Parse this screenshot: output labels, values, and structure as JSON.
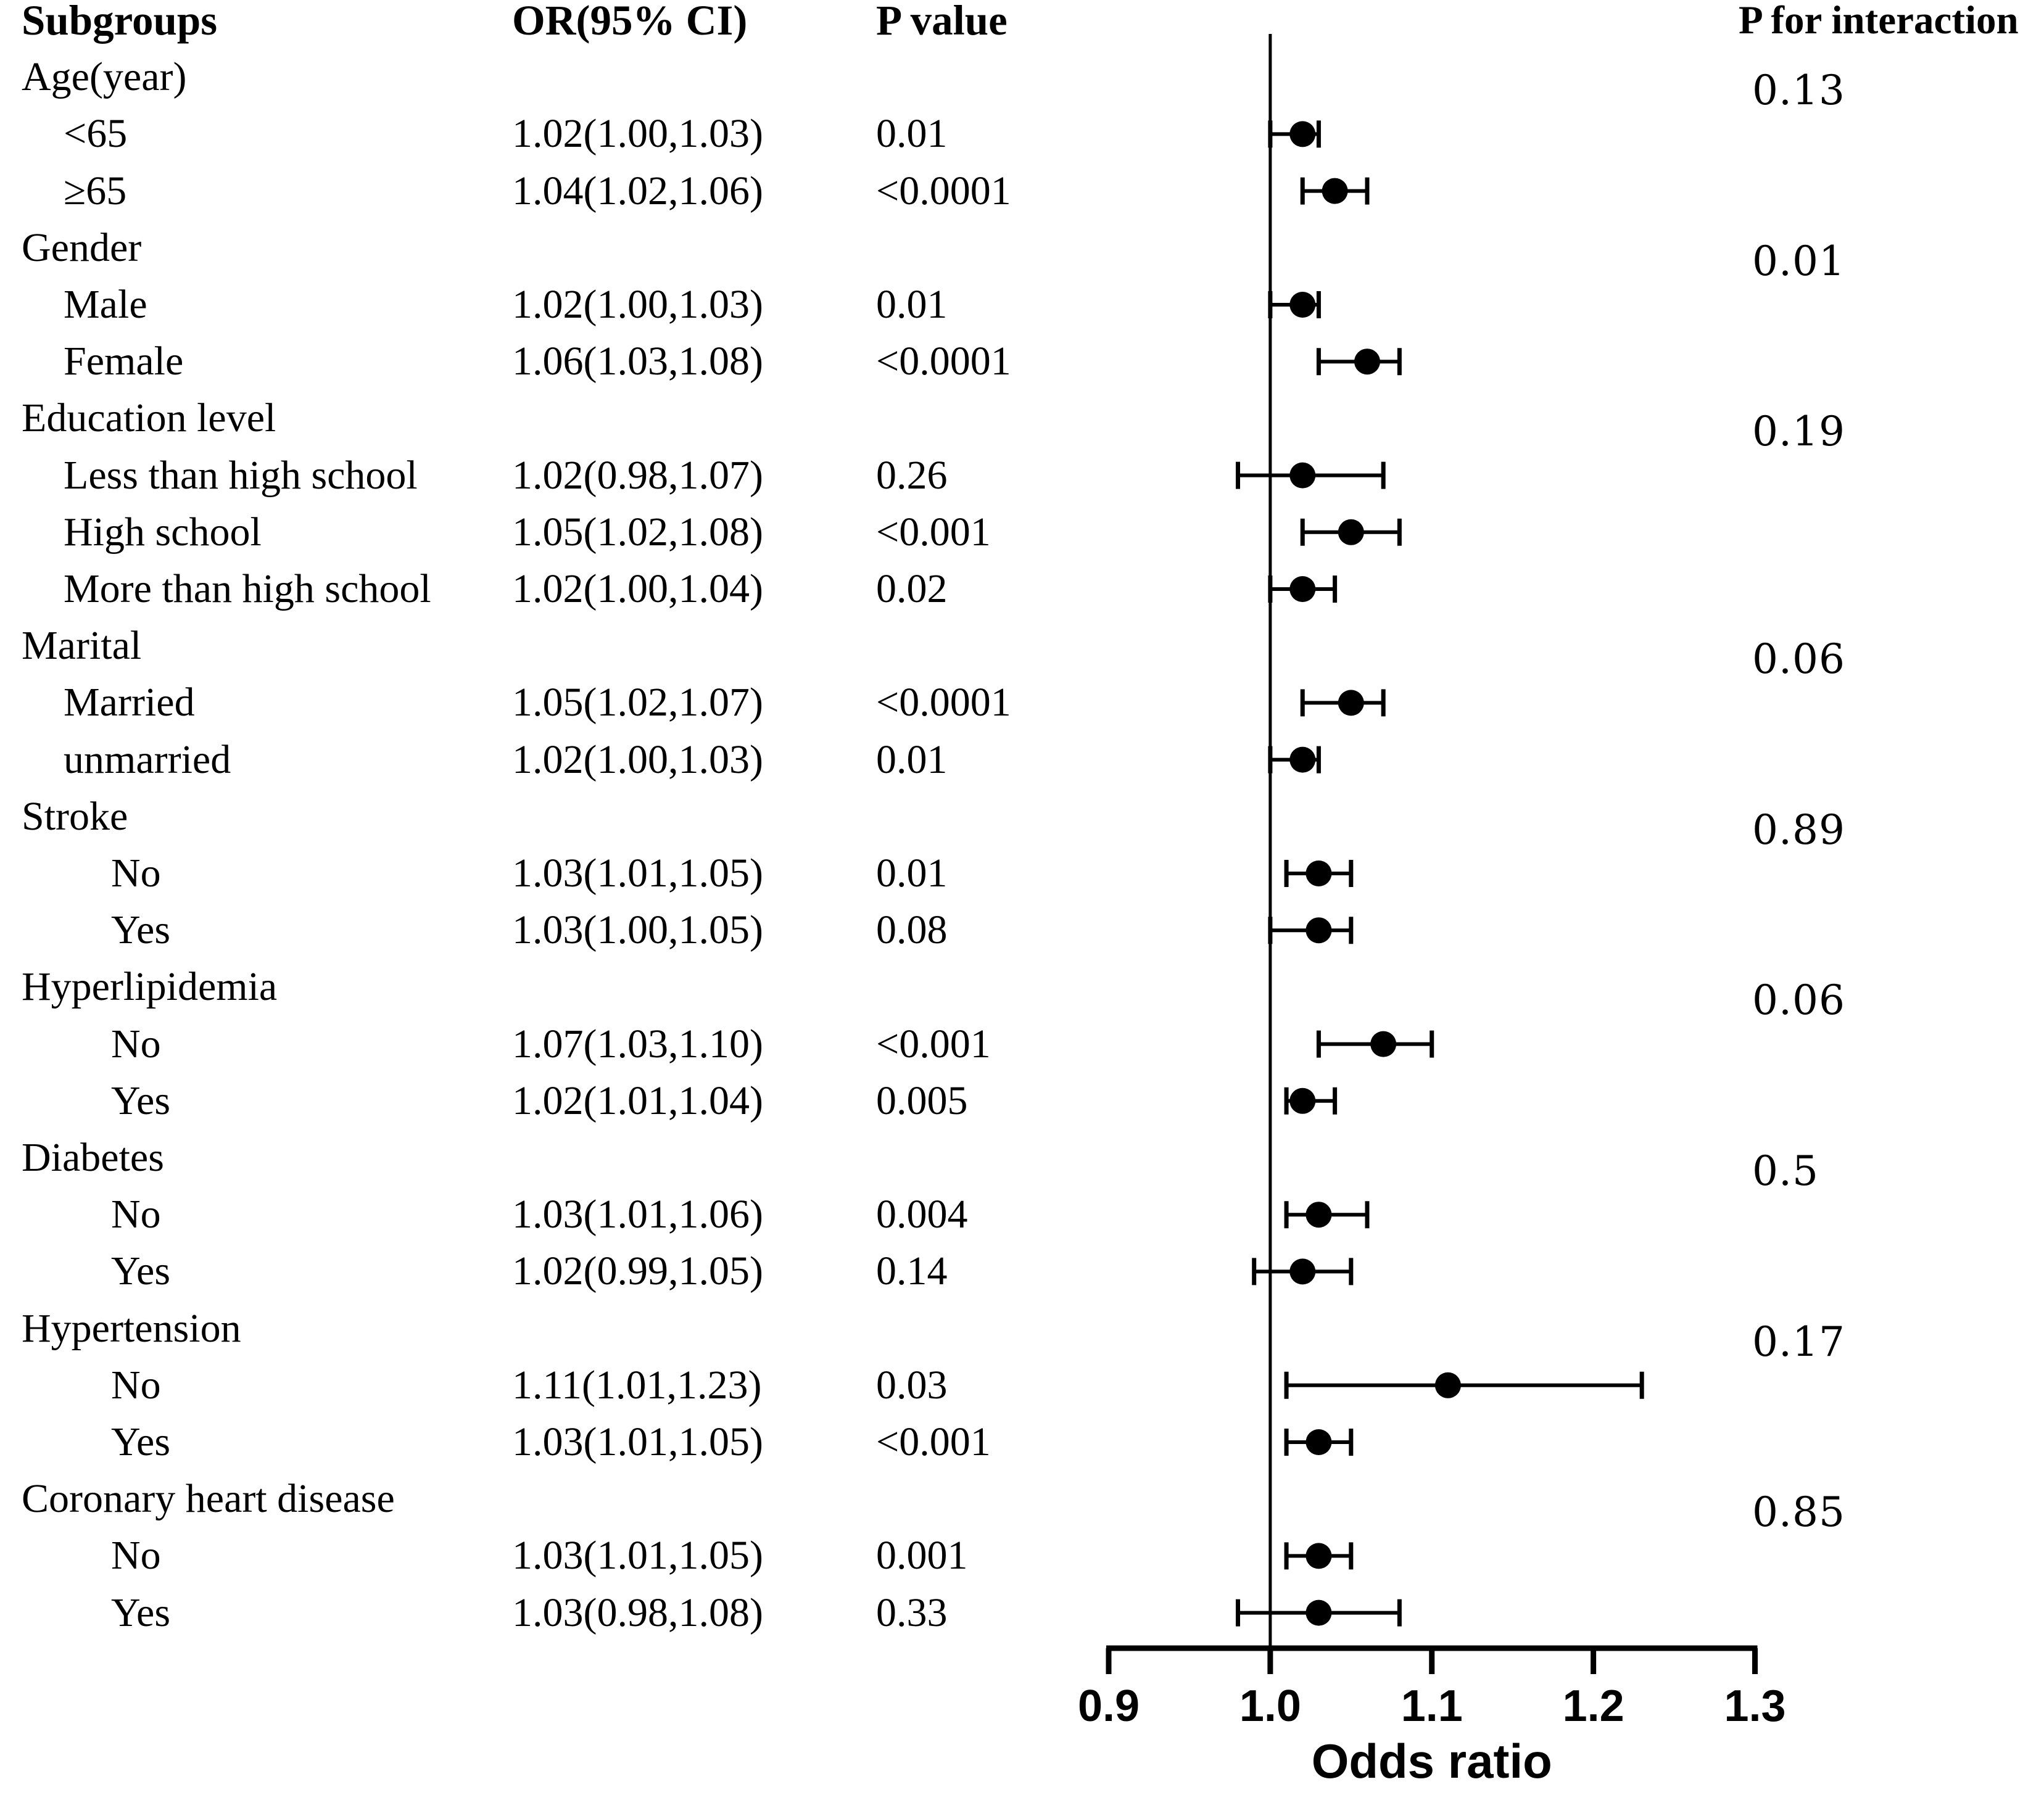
{
  "figure": {
    "columns": {
      "subgroups": "Subgroups",
      "or_ci": "OR(95% CI)",
      "p_value": "P value",
      "p_interaction": "P for interaction"
    },
    "colors": {
      "foreground": "#000000",
      "background": "#ffffff",
      "marker": "#000000"
    }
  },
  "chart_data": {
    "type": "scatter",
    "subtype": "forest-plot",
    "title": "",
    "xlabel": "Odds ratio",
    "ylabel": "",
    "xlim": [
      0.9,
      1.3
    ],
    "xticks": [
      0.9,
      1.0,
      1.1,
      1.2,
      1.3
    ],
    "xtick_labels": [
      "0.9",
      "1.0",
      "1.1",
      "1.2",
      "1.3"
    ],
    "reference_line": 1.0,
    "grid": false,
    "legend": "none",
    "rows": [
      {
        "label": "Age(year)",
        "level": 0,
        "p_interaction": "0.13"
      },
      {
        "label": "<65",
        "level": 1,
        "or_ci": "1.02(1.00,1.03)",
        "p_value": "0.01",
        "or": 1.02,
        "ci_low": 1.0,
        "ci_high": 1.03
      },
      {
        "label": "≥65",
        "level": 1,
        "or_ci": "1.04(1.02,1.06)",
        "p_value": "<0.0001",
        "or": 1.04,
        "ci_low": 1.02,
        "ci_high": 1.06
      },
      {
        "label": "Gender",
        "level": 0,
        "p_interaction": "0.01"
      },
      {
        "label": "Male",
        "level": 1,
        "or_ci": "1.02(1.00,1.03)",
        "p_value": "0.01",
        "or": 1.02,
        "ci_low": 1.0,
        "ci_high": 1.03
      },
      {
        "label": "Female",
        "level": 1,
        "or_ci": "1.06(1.03,1.08)",
        "p_value": "<0.0001",
        "or": 1.06,
        "ci_low": 1.03,
        "ci_high": 1.08
      },
      {
        "label": "Education level",
        "level": 0,
        "p_interaction": "0.19"
      },
      {
        "label": "Less than high school",
        "level": 1,
        "or_ci": "1.02(0.98,1.07)",
        "p_value": "0.26",
        "or": 1.02,
        "ci_low": 0.98,
        "ci_high": 1.07
      },
      {
        "label": "High school",
        "level": 1,
        "or_ci": "1.05(1.02,1.08)",
        "p_value": "<0.001",
        "or": 1.05,
        "ci_low": 1.02,
        "ci_high": 1.08
      },
      {
        "label": "More than high school",
        "level": 1,
        "or_ci": "1.02(1.00,1.04)",
        "p_value": "0.02",
        "or": 1.02,
        "ci_low": 1.0,
        "ci_high": 1.04
      },
      {
        "label": "Marital",
        "level": 0,
        "p_interaction": "0.06"
      },
      {
        "label": "Married",
        "level": 1,
        "or_ci": "1.05(1.02,1.07)",
        "p_value": "<0.0001",
        "or": 1.05,
        "ci_low": 1.02,
        "ci_high": 1.07
      },
      {
        "label": "unmarried",
        "level": 1,
        "or_ci": "1.02(1.00,1.03)",
        "p_value": "0.01",
        "or": 1.02,
        "ci_low": 1.0,
        "ci_high": 1.03
      },
      {
        "label": "Stroke",
        "level": 0,
        "p_interaction": "0.89"
      },
      {
        "label": "No",
        "level": 2,
        "or_ci": "1.03(1.01,1.05)",
        "p_value": "0.01",
        "or": 1.03,
        "ci_low": 1.01,
        "ci_high": 1.05
      },
      {
        "label": "Yes",
        "level": 2,
        "or_ci": "1.03(1.00,1.05)",
        "p_value": "0.08",
        "or": 1.03,
        "ci_low": 1.0,
        "ci_high": 1.05
      },
      {
        "label": "Hyperlipidemia",
        "level": 0,
        "p_interaction": "0.06"
      },
      {
        "label": "No",
        "level": 2,
        "or_ci": "1.07(1.03,1.10)",
        "p_value": "<0.001",
        "or": 1.07,
        "ci_low": 1.03,
        "ci_high": 1.1
      },
      {
        "label": "Yes",
        "level": 2,
        "or_ci": "1.02(1.01,1.04)",
        "p_value": "0.005",
        "or": 1.02,
        "ci_low": 1.01,
        "ci_high": 1.04
      },
      {
        "label": "Diabetes",
        "level": 0,
        "p_interaction": "0.5"
      },
      {
        "label": "No",
        "level": 2,
        "or_ci": "1.03(1.01,1.06)",
        "p_value": "0.004",
        "or": 1.03,
        "ci_low": 1.01,
        "ci_high": 1.06
      },
      {
        "label": "Yes",
        "level": 2,
        "or_ci": "1.02(0.99,1.05)",
        "p_value": "0.14",
        "or": 1.02,
        "ci_low": 0.99,
        "ci_high": 1.05
      },
      {
        "label": "Hypertension",
        "level": 0,
        "p_interaction": "0.17"
      },
      {
        "label": "No",
        "level": 2,
        "or_ci": "1.11(1.01,1.23)",
        "p_value": "0.03",
        "or": 1.11,
        "ci_low": 1.01,
        "ci_high": 1.23
      },
      {
        "label": "Yes",
        "level": 2,
        "or_ci": "1.03(1.01,1.05)",
        "p_value": "<0.001",
        "or": 1.03,
        "ci_low": 1.01,
        "ci_high": 1.05
      },
      {
        "label": "Coronary heart disease",
        "level": 0,
        "p_interaction": "0.85"
      },
      {
        "label": "No",
        "level": 2,
        "or_ci": "1.03(1.01,1.05)",
        "p_value": "0.001",
        "or": 1.03,
        "ci_low": 1.01,
        "ci_high": 1.05
      },
      {
        "label": "Yes",
        "level": 2,
        "or_ci": "1.03(0.98,1.08)",
        "p_value": "0.33",
        "or": 1.03,
        "ci_low": 0.98,
        "ci_high": 1.08
      }
    ]
  }
}
